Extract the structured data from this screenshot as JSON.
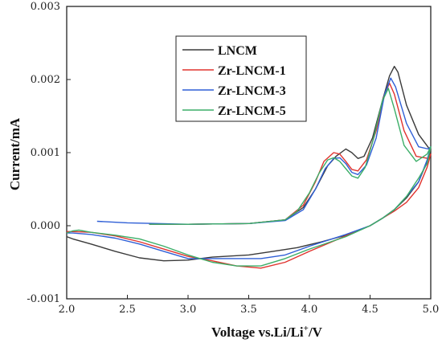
{
  "chart_data": {
    "type": "line",
    "xlabel": {
      "prefix": "Voltage vs.Li/Li",
      "sup": "+",
      "suffix": "/V"
    },
    "ylabel": "Current/mA",
    "xlim": [
      2.0,
      5.0
    ],
    "ylim": [
      -0.001,
      0.003
    ],
    "xticks": [
      2.0,
      2.5,
      3.0,
      3.5,
      4.0,
      4.5,
      5.0
    ],
    "xtick_labels": [
      "2.0",
      "2.5",
      "3.0",
      "3.5",
      "4.0",
      "4.5",
      "5.0"
    ],
    "yticks": [
      -0.001,
      0.0,
      0.001,
      0.002,
      0.003
    ],
    "ytick_labels": [
      "-0.001",
      "0.000",
      "0.001",
      "0.002",
      "0.003"
    ],
    "grid": false,
    "legend_position": "top-center",
    "series": [
      {
        "name": "LNCM",
        "color": "#3a3a3a",
        "points": [
          [
            2.68,
            2e-05
          ],
          [
            3.0,
            2e-05
          ],
          [
            3.5,
            3e-05
          ],
          [
            3.8,
            8e-05
          ],
          [
            3.95,
            0.00025
          ],
          [
            4.05,
            0.0005
          ],
          [
            4.15,
            0.00082
          ],
          [
            4.22,
            0.00095
          ],
          [
            4.3,
            0.00105
          ],
          [
            4.35,
            0.001
          ],
          [
            4.4,
            0.00092
          ],
          [
            4.45,
            0.00095
          ],
          [
            4.52,
            0.0012
          ],
          [
            4.6,
            0.0017
          ],
          [
            4.66,
            0.00205
          ],
          [
            4.7,
            0.00218
          ],
          [
            4.73,
            0.0021
          ],
          [
            4.8,
            0.00165
          ],
          [
            4.9,
            0.00125
          ],
          [
            4.98,
            0.00107
          ],
          [
            5.0,
            0.00102
          ],
          [
            4.98,
            0.00092
          ],
          [
            4.9,
            0.0006
          ],
          [
            4.8,
            0.00038
          ],
          [
            4.7,
            0.00022
          ],
          [
            4.6,
            0.0001
          ],
          [
            4.5,
            0.0
          ],
          [
            4.3,
            -0.00013
          ],
          [
            4.1,
            -0.00022
          ],
          [
            3.9,
            -0.0003
          ],
          [
            3.7,
            -0.00035
          ],
          [
            3.5,
            -0.0004
          ],
          [
            3.2,
            -0.00043
          ],
          [
            3.0,
            -0.00047
          ],
          [
            2.8,
            -0.00048
          ],
          [
            2.6,
            -0.00044
          ],
          [
            2.4,
            -0.00035
          ],
          [
            2.2,
            -0.00025
          ],
          [
            2.05,
            -0.00018
          ],
          [
            2.0,
            -0.00015
          ]
        ]
      },
      {
        "name": "Zr-LNCM-1",
        "color": "#e0332e",
        "points": [
          [
            2.68,
            2e-05
          ],
          [
            3.0,
            2e-05
          ],
          [
            3.5,
            3e-05
          ],
          [
            3.8,
            8e-05
          ],
          [
            3.95,
            0.00028
          ],
          [
            4.05,
            0.0006
          ],
          [
            4.12,
            0.00088
          ],
          [
            4.2,
            0.001
          ],
          [
            4.25,
            0.00098
          ],
          [
            4.3,
            0.00088
          ],
          [
            4.35,
            0.00077
          ],
          [
            4.4,
            0.00075
          ],
          [
            4.47,
            0.0009
          ],
          [
            4.55,
            0.0013
          ],
          [
            4.62,
            0.0018
          ],
          [
            4.66,
            0.00195
          ],
          [
            4.7,
            0.0018
          ],
          [
            4.78,
            0.0013
          ],
          [
            4.88,
            0.00095
          ],
          [
            4.98,
            0.00092
          ],
          [
            5.0,
            0.00098
          ],
          [
            4.97,
            0.0008
          ],
          [
            4.9,
            0.00052
          ],
          [
            4.8,
            0.00032
          ],
          [
            4.7,
            0.0002
          ],
          [
            4.6,
            0.0001
          ],
          [
            4.5,
            0.0
          ],
          [
            4.3,
            -0.00014
          ],
          [
            4.0,
            -0.00035
          ],
          [
            3.8,
            -0.0005
          ],
          [
            3.6,
            -0.00058
          ],
          [
            3.4,
            -0.00055
          ],
          [
            3.2,
            -0.00048
          ],
          [
            3.0,
            -0.00042
          ],
          [
            2.8,
            -0.00032
          ],
          [
            2.6,
            -0.00022
          ],
          [
            2.4,
            -0.00014
          ],
          [
            2.2,
            -9e-05
          ],
          [
            2.05,
            -8e-05
          ],
          [
            2.0,
            -8e-05
          ]
        ]
      },
      {
        "name": "Zr-LNCM-3",
        "color": "#2f5fd6",
        "points": [
          [
            2.25,
            6e-05
          ],
          [
            2.5,
            4e-05
          ],
          [
            3.0,
            2e-05
          ],
          [
            3.5,
            3e-05
          ],
          [
            3.8,
            7e-05
          ],
          [
            3.95,
            0.00022
          ],
          [
            4.05,
            0.0005
          ],
          [
            4.13,
            0.00078
          ],
          [
            4.2,
            0.00092
          ],
          [
            4.25,
            0.00093
          ],
          [
            4.3,
            0.00085
          ],
          [
            4.35,
            0.00073
          ],
          [
            4.4,
            0.0007
          ],
          [
            4.47,
            0.00083
          ],
          [
            4.55,
            0.0012
          ],
          [
            4.62,
            0.0018
          ],
          [
            4.67,
            0.00202
          ],
          [
            4.71,
            0.0019
          ],
          [
            4.8,
            0.0014
          ],
          [
            4.9,
            0.00108
          ],
          [
            4.98,
            0.00105
          ],
          [
            5.0,
            0.00108
          ],
          [
            4.97,
            0.0009
          ],
          [
            4.9,
            0.0006
          ],
          [
            4.8,
            0.0004
          ],
          [
            4.7,
            0.00022
          ],
          [
            4.6,
            0.0001
          ],
          [
            4.5,
            0.0
          ],
          [
            4.3,
            -0.00012
          ],
          [
            4.0,
            -0.00028
          ],
          [
            3.8,
            -0.0004
          ],
          [
            3.6,
            -0.00045
          ],
          [
            3.4,
            -0.00045
          ],
          [
            3.2,
            -0.00045
          ],
          [
            3.0,
            -0.00045
          ],
          [
            2.8,
            -0.00035
          ],
          [
            2.6,
            -0.00025
          ],
          [
            2.4,
            -0.00017
          ],
          [
            2.2,
            -0.00012
          ],
          [
            2.05,
            -0.0001
          ],
          [
            2.0,
            -0.0001
          ]
        ]
      },
      {
        "name": "Zr-LNCM-5",
        "color": "#3cae68",
        "points": [
          [
            2.0,
            -0.0001
          ],
          [
            2.05,
            -7e-05
          ],
          [
            2.1,
            -6e-05
          ],
          [
            2.2,
            -9e-05
          ],
          [
            2.4,
            -0.00013
          ],
          [
            2.6,
            -0.00018
          ],
          [
            2.8,
            -0.00028
          ],
          [
            3.0,
            -0.0004
          ],
          [
            3.2,
            -0.0005
          ],
          [
            3.4,
            -0.00055
          ],
          [
            3.6,
            -0.00055
          ],
          [
            3.8,
            -0.00045
          ],
          [
            4.0,
            -0.00032
          ],
          [
            4.3,
            -0.00015
          ],
          [
            4.5,
            0.0
          ],
          [
            4.6,
            0.0001
          ],
          [
            4.7,
            0.00022
          ],
          [
            4.8,
            0.0004
          ],
          [
            4.9,
            0.00065
          ],
          [
            4.97,
            0.00085
          ],
          [
            5.0,
            0.00108
          ],
          [
            4.97,
            0.00098
          ],
          [
            4.88,
            0.00088
          ],
          [
            4.78,
            0.0011
          ],
          [
            4.7,
            0.0016
          ],
          [
            4.65,
            0.00188
          ],
          [
            4.6,
            0.0017
          ],
          [
            4.53,
            0.0012
          ],
          [
            4.46,
            0.0008
          ],
          [
            4.4,
            0.00065
          ],
          [
            4.35,
            0.00068
          ],
          [
            4.3,
            0.00078
          ],
          [
            4.25,
            0.00088
          ],
          [
            4.2,
            0.00093
          ],
          [
            4.15,
            0.0009
          ],
          [
            4.08,
            0.00072
          ],
          [
            4.0,
            0.00045
          ],
          [
            3.9,
            0.0002
          ],
          [
            3.8,
            8e-05
          ],
          [
            3.5,
            3e-05
          ],
          [
            3.0,
            2e-05
          ],
          [
            2.68,
            2e-05
          ]
        ]
      }
    ]
  }
}
